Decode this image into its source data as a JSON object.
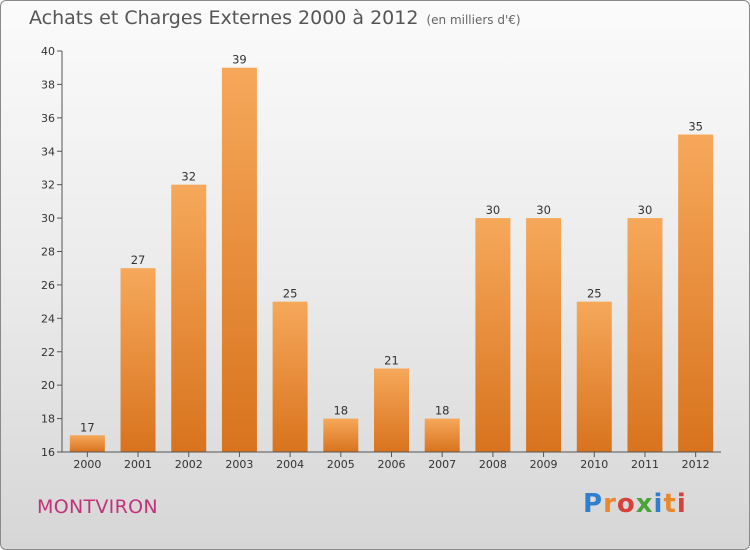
{
  "header": {
    "title": "Achats et Charges Externes 2000 à 2012",
    "subtitle": "(en milliers d'€)"
  },
  "footer": {
    "place": "MONTVIRON",
    "logo_letters": [
      {
        "ch": "P",
        "color": "#2f7fd0"
      },
      {
        "ch": "r",
        "color": "#e8892f"
      },
      {
        "ch": "o",
        "color": "#d8403a"
      },
      {
        "ch": "x",
        "color": "#4aa43a"
      },
      {
        "ch": "i",
        "color": "#2f7fd0"
      },
      {
        "ch": "t",
        "color": "#e8892f"
      },
      {
        "ch": "i",
        "color": "#d8403a"
      }
    ]
  },
  "chart_data": {
    "type": "bar",
    "title": "Achats et Charges Externes 2000 à 2012",
    "subtitle": "(en milliers d'€)",
    "xlabel": "",
    "ylabel": "",
    "categories": [
      "2000",
      "2001",
      "2002",
      "2003",
      "2004",
      "2005",
      "2006",
      "2007",
      "2008",
      "2009",
      "2010",
      "2011",
      "2012"
    ],
    "values": [
      17,
      27,
      32,
      39,
      25,
      18,
      21,
      18,
      30,
      30,
      25,
      30,
      35
    ],
    "ylim": [
      16,
      40
    ],
    "yticks": [
      16,
      18,
      20,
      22,
      24,
      26,
      28,
      30,
      32,
      34,
      36,
      38,
      40
    ],
    "grid": false,
    "bar_color_light": "#f6a85a",
    "bar_color_dark": "#d8731e"
  }
}
